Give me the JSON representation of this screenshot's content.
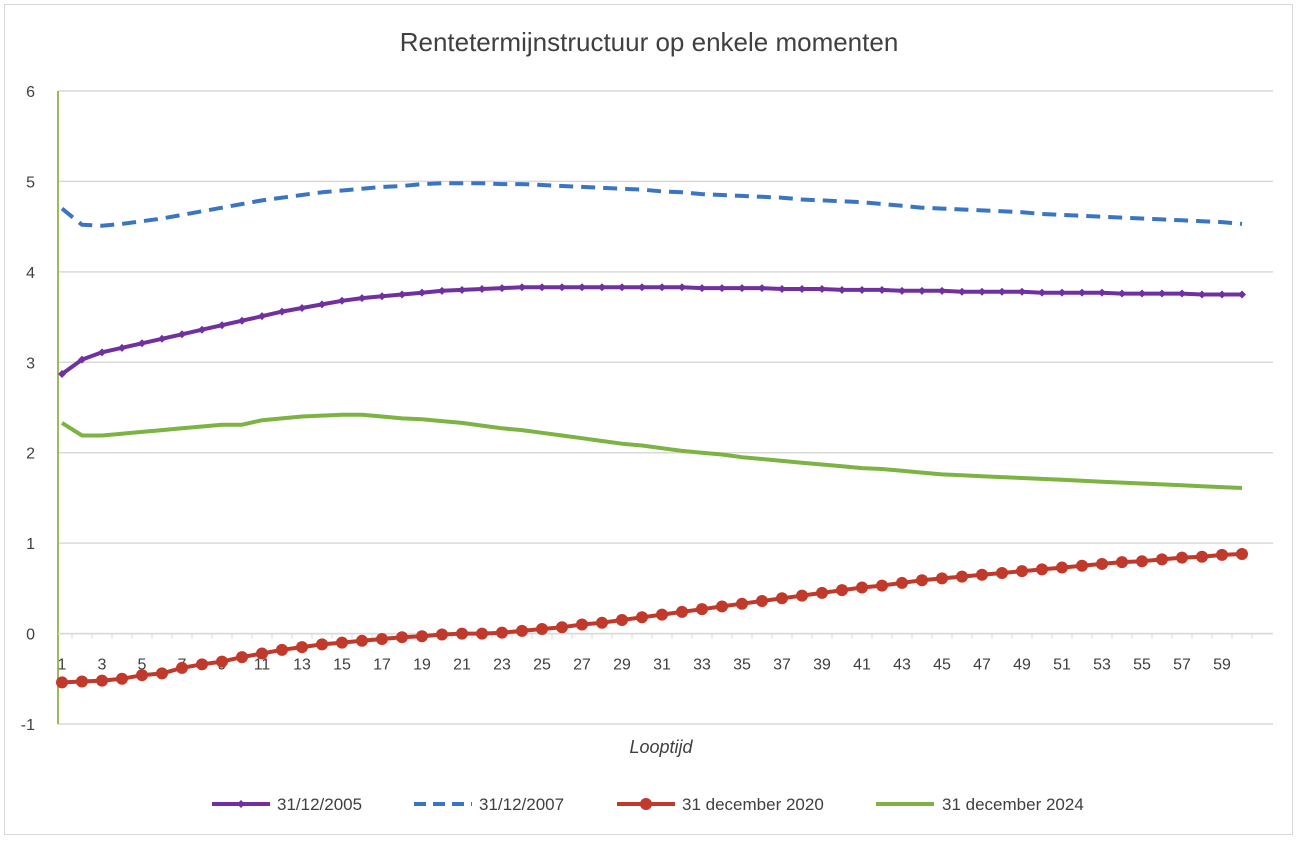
{
  "chart_data": {
    "type": "line",
    "title": "Rentetermijnstructuur op enkele momenten",
    "xlabel": "Looptijd",
    "ylabel": "",
    "ylim": [
      -1,
      6
    ],
    "yticks": [
      -1,
      0,
      1,
      2,
      3,
      4,
      5,
      6
    ],
    "x": [
      1,
      2,
      3,
      4,
      5,
      6,
      7,
      8,
      9,
      10,
      11,
      12,
      13,
      14,
      15,
      16,
      17,
      18,
      19,
      20,
      21,
      22,
      23,
      24,
      25,
      26,
      27,
      28,
      29,
      30,
      31,
      32,
      33,
      34,
      35,
      36,
      37,
      38,
      39,
      40,
      41,
      42,
      43,
      44,
      45,
      46,
      47,
      48,
      49,
      50,
      51,
      52,
      53,
      54,
      55,
      56,
      57,
      58,
      59,
      60
    ],
    "xtick_labels": [
      1,
      3,
      5,
      7,
      9,
      11,
      13,
      15,
      17,
      19,
      21,
      23,
      25,
      27,
      29,
      31,
      33,
      35,
      37,
      39,
      41,
      43,
      45,
      47,
      49,
      51,
      53,
      55,
      57,
      59
    ],
    "grid": true,
    "legend_position": "bottom",
    "series": [
      {
        "name": "31/12/2005",
        "color": "#7030a0",
        "style": "solid-diamond",
        "values": [
          2.87,
          3.03,
          3.11,
          3.16,
          3.21,
          3.26,
          3.31,
          3.36,
          3.41,
          3.46,
          3.51,
          3.56,
          3.6,
          3.64,
          3.68,
          3.71,
          3.73,
          3.75,
          3.77,
          3.79,
          3.8,
          3.81,
          3.82,
          3.83,
          3.83,
          3.83,
          3.83,
          3.83,
          3.83,
          3.83,
          3.83,
          3.83,
          3.82,
          3.82,
          3.82,
          3.82,
          3.81,
          3.81,
          3.81,
          3.8,
          3.8,
          3.8,
          3.79,
          3.79,
          3.79,
          3.78,
          3.78,
          3.78,
          3.78,
          3.77,
          3.77,
          3.77,
          3.77,
          3.76,
          3.76,
          3.76,
          3.76,
          3.75,
          3.75,
          3.75
        ]
      },
      {
        "name": "31/12/2007",
        "color": "#3a75c4",
        "style": "dashed",
        "values": [
          4.7,
          4.52,
          4.51,
          4.53,
          4.56,
          4.59,
          4.63,
          4.67,
          4.71,
          4.75,
          4.79,
          4.82,
          4.85,
          4.88,
          4.9,
          4.92,
          4.94,
          4.95,
          4.97,
          4.98,
          4.98,
          4.98,
          4.97,
          4.97,
          4.96,
          4.95,
          4.94,
          4.93,
          4.92,
          4.91,
          4.89,
          4.88,
          4.86,
          4.85,
          4.84,
          4.83,
          4.82,
          4.8,
          4.79,
          4.78,
          4.77,
          4.75,
          4.73,
          4.71,
          4.7,
          4.69,
          4.68,
          4.67,
          4.66,
          4.64,
          4.63,
          4.62,
          4.61,
          4.6,
          4.59,
          4.58,
          4.57,
          4.56,
          4.55,
          4.53
        ]
      },
      {
        "name": "31 december 2020",
        "color": "#c0392b",
        "style": "solid-circle",
        "values": [
          -0.54,
          -0.53,
          -0.52,
          -0.5,
          -0.46,
          -0.44,
          -0.38,
          -0.34,
          -0.31,
          -0.26,
          -0.22,
          -0.18,
          -0.15,
          -0.12,
          -0.1,
          -0.08,
          -0.06,
          -0.04,
          -0.03,
          -0.01,
          0.0,
          0.0,
          0.01,
          0.03,
          0.05,
          0.07,
          0.1,
          0.12,
          0.15,
          0.18,
          0.21,
          0.24,
          0.27,
          0.3,
          0.33,
          0.36,
          0.39,
          0.42,
          0.45,
          0.48,
          0.51,
          0.53,
          0.56,
          0.59,
          0.61,
          0.63,
          0.65,
          0.67,
          0.69,
          0.71,
          0.73,
          0.75,
          0.77,
          0.79,
          0.8,
          0.82,
          0.84,
          0.85,
          0.87,
          0.88
        ]
      },
      {
        "name": "31 december 2024",
        "color": "#7cb342",
        "style": "solid",
        "values": [
          2.33,
          2.19,
          2.19,
          2.21,
          2.23,
          2.25,
          2.27,
          2.29,
          2.31,
          2.31,
          2.36,
          2.38,
          2.4,
          2.41,
          2.42,
          2.42,
          2.4,
          2.38,
          2.37,
          2.35,
          2.33,
          2.3,
          2.27,
          2.25,
          2.22,
          2.19,
          2.16,
          2.13,
          2.1,
          2.08,
          2.05,
          2.02,
          2.0,
          1.98,
          1.95,
          1.93,
          1.91,
          1.89,
          1.87,
          1.85,
          1.83,
          1.82,
          1.8,
          1.78,
          1.76,
          1.75,
          1.74,
          1.73,
          1.72,
          1.71,
          1.7,
          1.69,
          1.68,
          1.67,
          1.66,
          1.65,
          1.64,
          1.63,
          1.62,
          1.61
        ]
      }
    ]
  }
}
